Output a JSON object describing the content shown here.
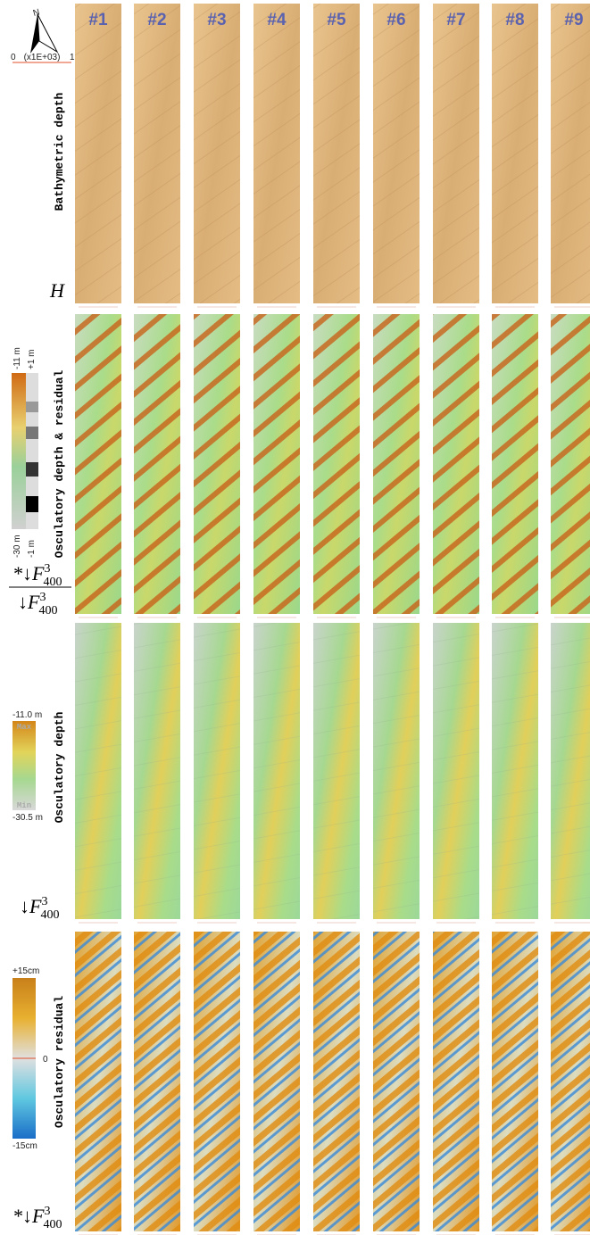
{
  "compass": {
    "north": "N",
    "scale_start": "0",
    "scale_unit": "(x1E+03)",
    "scale_end": "1"
  },
  "columns": [
    "#1",
    "#2",
    "#3",
    "#4",
    "#5",
    "#6",
    "#7",
    "#8",
    "#9"
  ],
  "rows": [
    {
      "label": "Bathymetric depth",
      "symbol": {
        "base": "H"
      }
    },
    {
      "label": "Osculatory depth & residual",
      "legend": {
        "top_left": "-11 m",
        "top_right": "+1 m",
        "bottom_left": "-30 m",
        "bottom_right": "-1 m"
      },
      "symbol": {
        "numerator": {
          "prefix": "*↓",
          "base": "F",
          "sup": "3",
          "sub": "400"
        },
        "denominator": {
          "prefix": "↓",
          "base": "F",
          "sup": "3",
          "sub": "400"
        }
      }
    },
    {
      "label": "Osculatory depth",
      "legend": {
        "max_value": "-11.0 m",
        "max": "Max",
        "min": "Min",
        "min_value": "-30.5 m"
      },
      "symbol": {
        "prefix": "↓",
        "base": "F",
        "sup": "3",
        "sub": "400"
      }
    },
    {
      "label": "Osculatory residual",
      "legend": {
        "top": "+15cm",
        "mid": "0",
        "bottom": "-15cm"
      },
      "symbol": {
        "prefix": "*↓",
        "base": "F",
        "sup": "3",
        "sub": "400"
      }
    }
  ]
}
